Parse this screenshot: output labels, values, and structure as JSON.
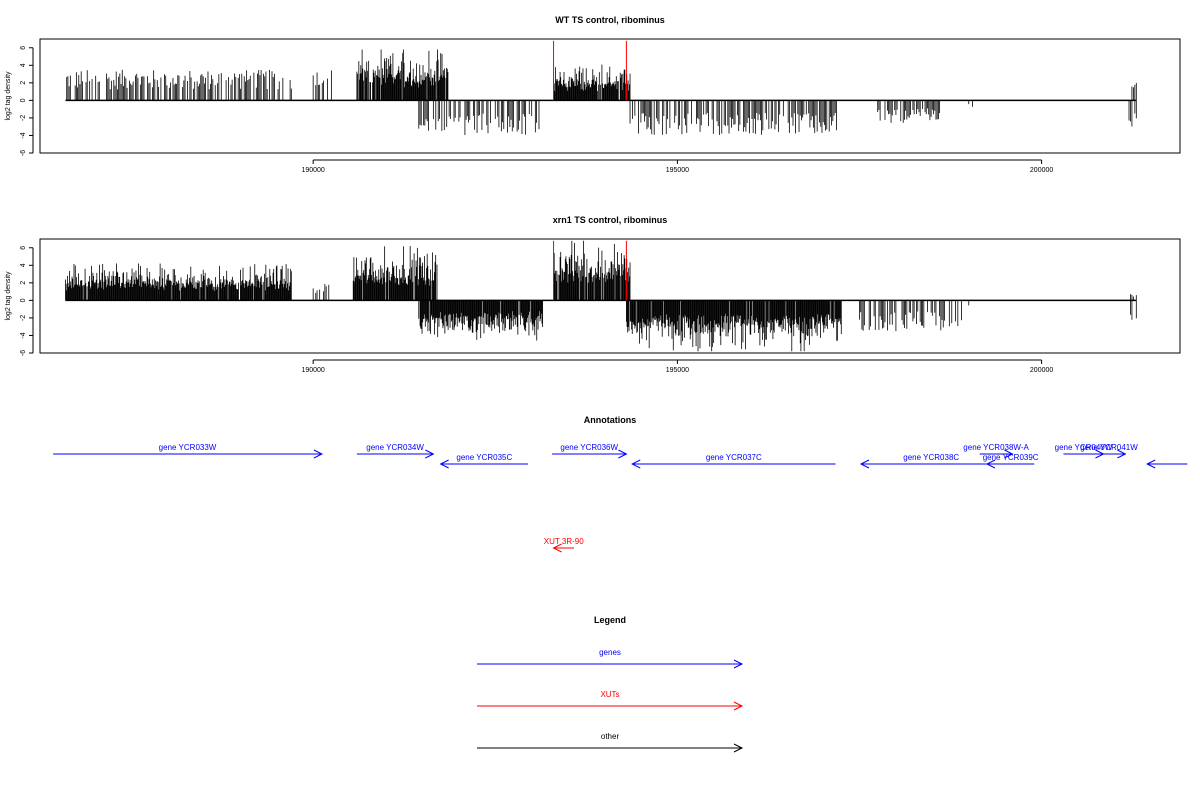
{
  "chart_data": [
    {
      "type": "bar",
      "title": "WT TS control, ribominus",
      "ylabel": "log2 tag density",
      "xlabel": "",
      "ylim": [
        -6,
        7
      ],
      "xlim": [
        186250,
        201900
      ],
      "y_ticks": [
        "6",
        "4",
        "2",
        "0",
        "-2",
        "-4",
        "-6"
      ],
      "x_ticks": [
        "190000",
        "195000",
        "200000"
      ],
      "series": [
        {
          "strand": "plus",
          "regions": [
            {
              "start": 186600,
              "end": 189700,
              "max": 3.5
            },
            {
              "start": 190000,
              "end": 190250,
              "max": 3.6
            },
            {
              "start": 190600,
              "end": 191850,
              "max": 5.8
            },
            {
              "start": 193300,
              "end": 194350,
              "max": 4.1
            },
            {
              "start": 201200,
              "end": 201300,
              "max": 2.0
            }
          ]
        },
        {
          "strand": "minus",
          "regions": [
            {
              "start": 191450,
              "end": 193100,
              "max": 4.0
            },
            {
              "start": 194350,
              "end": 197250,
              "max": 4.0
            },
            {
              "start": 197700,
              "end": 198600,
              "max": 2.6
            },
            {
              "start": 199000,
              "end": 199050,
              "max": 1.1
            },
            {
              "start": 201200,
              "end": 201300,
              "max": 3.0
            }
          ]
        }
      ],
      "markers": [
        193300,
        194300
      ],
      "marker_height": 6.8
    },
    {
      "type": "bar",
      "title": "xrn1 TS control, ribominus",
      "ylabel": "log2 tag density",
      "xlabel": "",
      "ylim": [
        -6,
        7
      ],
      "xlim": [
        186250,
        201900
      ],
      "y_ticks": [
        "6",
        "4",
        "2",
        "0",
        "-2",
        "-4",
        "-6"
      ],
      "x_ticks": [
        "190000",
        "195000",
        "200000"
      ],
      "series": [
        {
          "strand": "plus",
          "regions": [
            {
              "start": 186600,
              "end": 189700,
              "max": 4.2
            },
            {
              "start": 190000,
              "end": 190250,
              "max": 2.0
            },
            {
              "start": 190550,
              "end": 191700,
              "max": 6.2
            },
            {
              "start": 193300,
              "end": 194350,
              "max": 6.8
            },
            {
              "start": 201200,
              "end": 201300,
              "max": 0.8
            }
          ]
        },
        {
          "strand": "minus",
          "regions": [
            {
              "start": 191450,
              "end": 193150,
              "max": 4.6
            },
            {
              "start": 194300,
              "end": 197250,
              "max": 5.8
            },
            {
              "start": 197500,
              "end": 198900,
              "max": 3.6
            },
            {
              "start": 199000,
              "end": 199050,
              "max": 1.5
            },
            {
              "start": 201200,
              "end": 201300,
              "max": 3.0
            }
          ]
        }
      ],
      "markers": [
        193300,
        194300
      ],
      "marker_height": 6.8
    }
  ],
  "annotations": {
    "title": "Annotations",
    "genes": [
      {
        "label": "gene YCR033W",
        "start": 186430,
        "end": 190120,
        "strand": "+",
        "row": 0
      },
      {
        "label": "gene YCR034W",
        "start": 190600,
        "end": 191650,
        "strand": "+",
        "row": 0
      },
      {
        "label": "gene YCR035C",
        "start": 191750,
        "end": 192950,
        "strand": "-",
        "row": 1
      },
      {
        "label": "gene YCR036W",
        "start": 193280,
        "end": 194300,
        "strand": "+",
        "row": 0
      },
      {
        "label": "gene YCR037C",
        "start": 194380,
        "end": 197170,
        "strand": "-",
        "row": 1
      },
      {
        "label": "gene YCR038W-A",
        "start": 199150,
        "end": 199600,
        "strand": "+",
        "row": 0
      },
      {
        "label": "gene YCR038C",
        "start": 197520,
        "end": 199450,
        "strand": "-",
        "row": 1
      },
      {
        "label": "gene YCR039C",
        "start": 199250,
        "end": 199900,
        "strand": "-",
        "row": 1
      },
      {
        "label": "gene YCR040W",
        "start": 200300,
        "end": 200850,
        "strand": "+",
        "row": 0
      },
      {
        "label": "gene YCR041W",
        "start": 200700,
        "end": 201150,
        "strand": "+",
        "row": 0
      },
      {
        "label": "",
        "start": 201450,
        "end": 202000,
        "strand": "-",
        "row": 1
      }
    ],
    "xuts": [
      {
        "label": "XUT 3R-90",
        "start": 193300,
        "end": 193580,
        "strand": "-"
      }
    ]
  },
  "legend": {
    "title": "Legend",
    "items": [
      {
        "label": "genes",
        "color": "#0000ff"
      },
      {
        "label": "XUTs",
        "color": "#ff0000"
      },
      {
        "label": "other",
        "color": "#000000"
      }
    ]
  },
  "colors": {
    "gene": "#0000ff",
    "xut": "#ff0000",
    "signal": "#000000",
    "marker": "#ff0000"
  }
}
